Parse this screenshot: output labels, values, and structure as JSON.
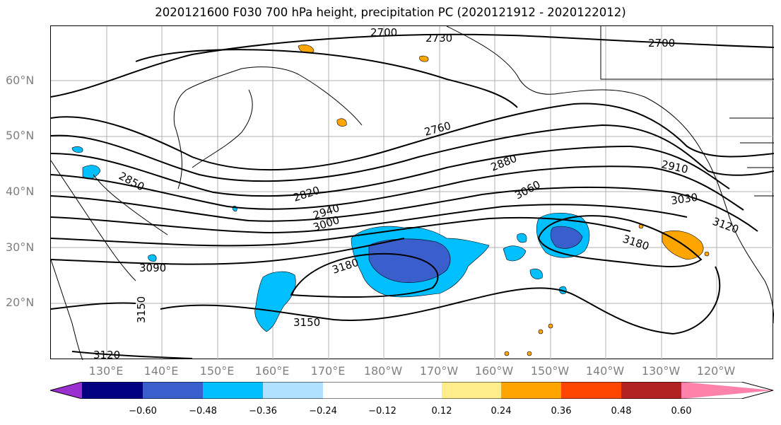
{
  "title": "2020121600 F030 700 hPa height, precipitation PC (2020121912 - 2020122012)",
  "latitude_labels": [
    "60°N",
    "50°N",
    "40°N",
    "30°N",
    "20°N"
  ],
  "longitude_labels": [
    "130°E",
    "140°E",
    "150°E",
    "160°E",
    "170°E",
    "180°W",
    "170°W",
    "160°W",
    "150°W",
    "140°W",
    "130°W",
    "120°W"
  ],
  "contour_labels": [
    "2700",
    "2730",
    "2760",
    "2760",
    "2820",
    "2850",
    "2880",
    "2910",
    "2940",
    "3000",
    "3030",
    "3060",
    "3090",
    "3120",
    "3120",
    "3150",
    "3150",
    "3180",
    "3180"
  ],
  "colorbar": {
    "ticks": [
      "−0.60",
      "−0.48",
      "−0.36",
      "−0.24",
      "−0.12",
      "0.12",
      "0.24",
      "0.36",
      "0.48",
      "0.60"
    ],
    "colors": [
      "#9b30d0",
      "#000080",
      "#3a5fcd",
      "#00bfff",
      "#b0e0ff",
      "#ffffff",
      "#ffec8b",
      "#ffa500",
      "#ff4500",
      "#b22222",
      "#ff82ab"
    ]
  }
}
